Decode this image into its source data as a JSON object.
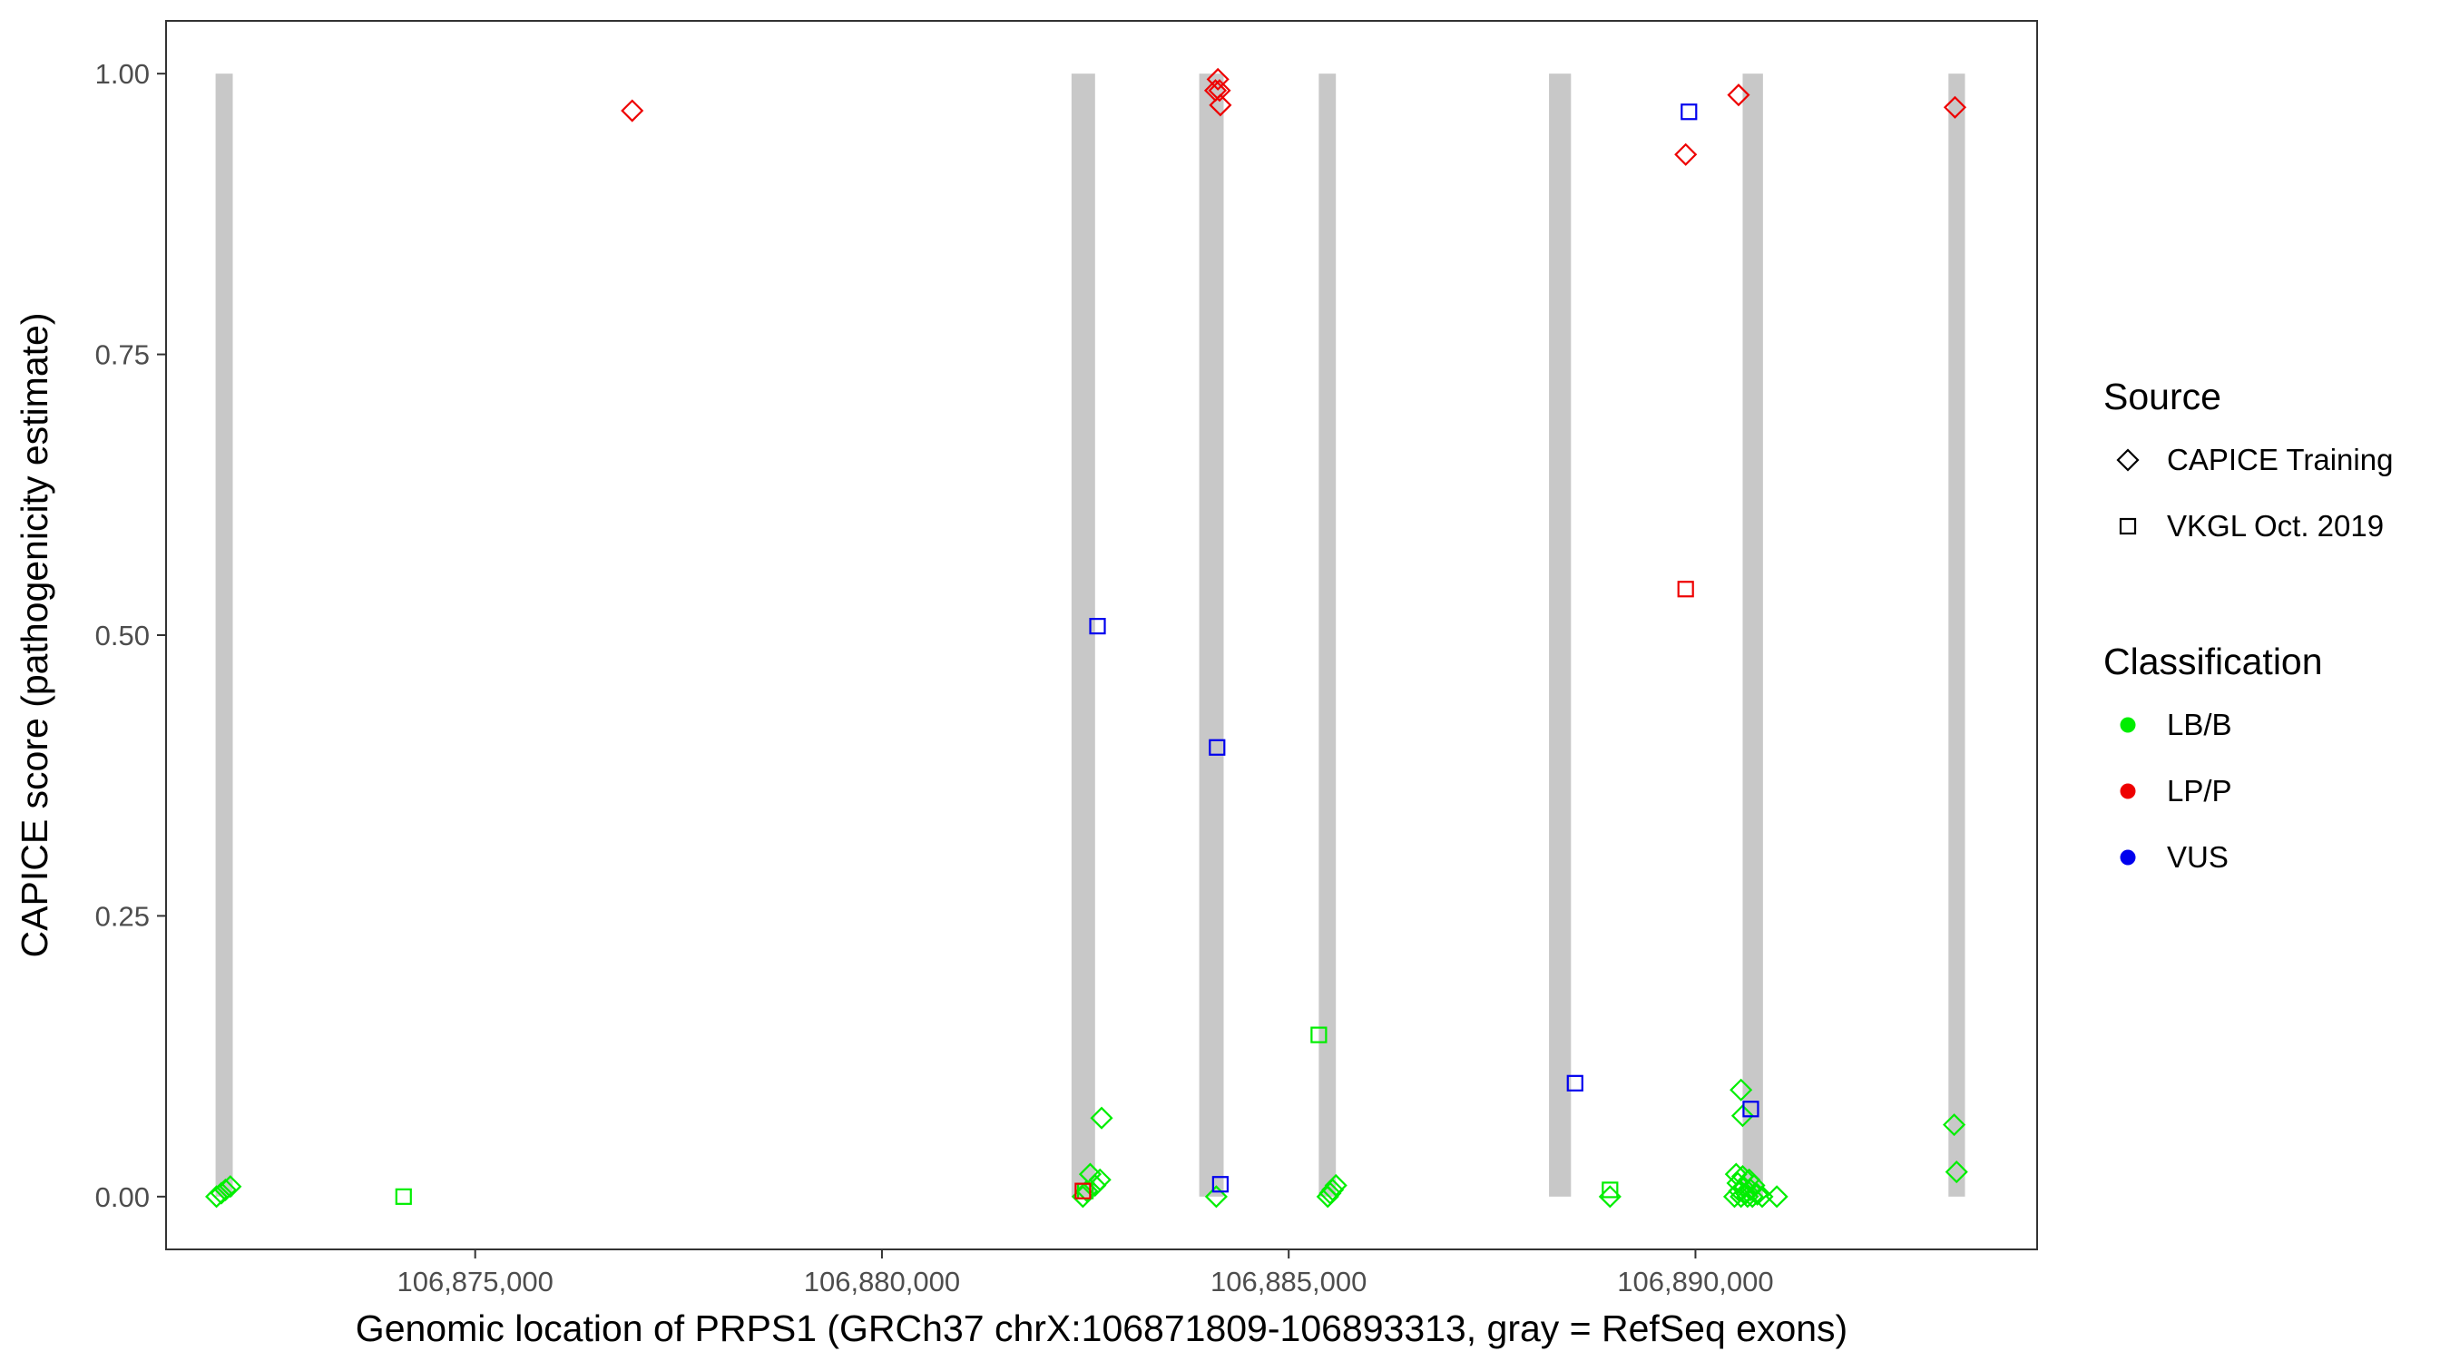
{
  "chart_data": {
    "type": "scatter",
    "xlabel": "Genomic location of PRPS1 (GRCh37 chrX:106871809-106893313, gray = RefSeq exons)",
    "ylabel": "CAPICE score (pathogenicity estimate)",
    "xlim": [
      106871200,
      106894200
    ],
    "ylim": [
      -0.047,
      1.047
    ],
    "x_ticks": [
      106875000,
      106880000,
      106885000,
      106890000
    ],
    "x_tick_labels": [
      "106,875,000",
      "106,880,000",
      "106,885,000",
      "106,890,000"
    ],
    "y_ticks": [
      0,
      0.25,
      0.5,
      0.75,
      1.0
    ],
    "y_tick_labels": [
      "0.00",
      "0.25",
      "0.50",
      "0.75",
      "1.00"
    ],
    "grid": false,
    "exons": [
      {
        "start": 106871809,
        "end": 106872020,
        "ymin": 0,
        "ymax": 1.0
      },
      {
        "start": 106882330,
        "end": 106882620,
        "ymin": 0,
        "ymax": 1.0
      },
      {
        "start": 106883900,
        "end": 106884200,
        "ymin": 0,
        "ymax": 1.0
      },
      {
        "start": 106885370,
        "end": 106885580,
        "ymin": 0,
        "ymax": 1.0
      },
      {
        "start": 106888200,
        "end": 106888470,
        "ymin": 0,
        "ymax": 1.0
      },
      {
        "start": 106890580,
        "end": 106890830,
        "ymin": 0,
        "ymax": 1.0
      },
      {
        "start": 106893110,
        "end": 106893313,
        "ymin": 0,
        "ymax": 1.0
      }
    ],
    "legend": {
      "placement": "right",
      "source_title": "Source",
      "source_items": [
        {
          "label": "CAPICE Training",
          "shape": "diamond"
        },
        {
          "label": "VKGL Oct. 2019",
          "shape": "square"
        }
      ],
      "class_title": "Classification",
      "class_items": [
        {
          "label": "LB/B",
          "color": "#00ee00"
        },
        {
          "label": "LP/P",
          "color": "#ee0000"
        },
        {
          "label": "VUS",
          "color": "#0000ee"
        }
      ]
    },
    "colors": {
      "LB/B": "#00ee00",
      "LP/P": "#ee0000",
      "VUS": "#0000ee",
      "exon": "#c8c8c8"
    },
    "points": [
      {
        "x": 106871820,
        "y": 0.0,
        "shape": "diamond",
        "cls": "LB/B"
      },
      {
        "x": 106871880,
        "y": 0.003,
        "shape": "diamond",
        "cls": "LB/B"
      },
      {
        "x": 106871930,
        "y": 0.006,
        "shape": "diamond",
        "cls": "LB/B"
      },
      {
        "x": 106871990,
        "y": 0.009,
        "shape": "diamond",
        "cls": "LB/B"
      },
      {
        "x": 106874120,
        "y": 0.0,
        "shape": "square",
        "cls": "LB/B"
      },
      {
        "x": 106876930,
        "y": 0.967,
        "shape": "diamond",
        "cls": "LP/P"
      },
      {
        "x": 106882470,
        "y": 0.0,
        "shape": "diamond",
        "cls": "LB/B"
      },
      {
        "x": 106882520,
        "y": 0.005,
        "shape": "diamond",
        "cls": "LB/B"
      },
      {
        "x": 106882560,
        "y": 0.02,
        "shape": "diamond",
        "cls": "LB/B"
      },
      {
        "x": 106882620,
        "y": 0.01,
        "shape": "diamond",
        "cls": "LB/B"
      },
      {
        "x": 106882680,
        "y": 0.015,
        "shape": "diamond",
        "cls": "LB/B"
      },
      {
        "x": 106882700,
        "y": 0.07,
        "shape": "diamond",
        "cls": "LB/B"
      },
      {
        "x": 106882500,
        "y": 0.005,
        "shape": "square",
        "cls": "LB/B"
      },
      {
        "x": 106882470,
        "y": 0.005,
        "shape": "square",
        "cls": "LP/P"
      },
      {
        "x": 106882650,
        "y": 0.508,
        "shape": "square",
        "cls": "VUS"
      },
      {
        "x": 106884100,
        "y": 0.985,
        "shape": "diamond",
        "cls": "LP/P"
      },
      {
        "x": 106884130,
        "y": 0.995,
        "shape": "diamond",
        "cls": "LP/P"
      },
      {
        "x": 106884150,
        "y": 0.985,
        "shape": "diamond",
        "cls": "LP/P"
      },
      {
        "x": 106884160,
        "y": 0.972,
        "shape": "diamond",
        "cls": "LP/P"
      },
      {
        "x": 106884110,
        "y": 0.0,
        "shape": "diamond",
        "cls": "LB/B"
      },
      {
        "x": 106884120,
        "y": 0.4,
        "shape": "square",
        "cls": "VUS"
      },
      {
        "x": 106884160,
        "y": 0.011,
        "shape": "square",
        "cls": "VUS"
      },
      {
        "x": 106885370,
        "y": 0.144,
        "shape": "square",
        "cls": "LB/B"
      },
      {
        "x": 106885480,
        "y": 0.0,
        "shape": "diamond",
        "cls": "LB/B"
      },
      {
        "x": 106885510,
        "y": 0.003,
        "shape": "diamond",
        "cls": "LB/B"
      },
      {
        "x": 106885540,
        "y": 0.006,
        "shape": "diamond",
        "cls": "LB/B"
      },
      {
        "x": 106885580,
        "y": 0.01,
        "shape": "diamond",
        "cls": "LB/B"
      },
      {
        "x": 106888520,
        "y": 0.101,
        "shape": "square",
        "cls": "VUS"
      },
      {
        "x": 106888950,
        "y": 0.0,
        "shape": "diamond",
        "cls": "LB/B"
      },
      {
        "x": 106888950,
        "y": 0.006,
        "shape": "square",
        "cls": "LB/B"
      },
      {
        "x": 106889880,
        "y": 0.928,
        "shape": "diamond",
        "cls": "LP/P"
      },
      {
        "x": 106889880,
        "y": 0.541,
        "shape": "square",
        "cls": "LP/P"
      },
      {
        "x": 106889920,
        "y": 0.966,
        "shape": "square",
        "cls": "VUS"
      },
      {
        "x": 106890530,
        "y": 0.981,
        "shape": "diamond",
        "cls": "LP/P"
      },
      {
        "x": 106890560,
        "y": 0.095,
        "shape": "diamond",
        "cls": "LB/B"
      },
      {
        "x": 106890580,
        "y": 0.072,
        "shape": "diamond",
        "cls": "LB/B"
      },
      {
        "x": 106890680,
        "y": 0.078,
        "shape": "square",
        "cls": "VUS"
      },
      {
        "x": 106890480,
        "y": 0.0,
        "shape": "diamond",
        "cls": "LB/B"
      },
      {
        "x": 106890500,
        "y": 0.02,
        "shape": "diamond",
        "cls": "LB/B"
      },
      {
        "x": 106890520,
        "y": 0.012,
        "shape": "diamond",
        "cls": "LB/B"
      },
      {
        "x": 106890540,
        "y": 0.005,
        "shape": "diamond",
        "cls": "LB/B"
      },
      {
        "x": 106890560,
        "y": 0.0,
        "shape": "diamond",
        "cls": "LB/B"
      },
      {
        "x": 106890580,
        "y": 0.018,
        "shape": "diamond",
        "cls": "LB/B"
      },
      {
        "x": 106890600,
        "y": 0.008,
        "shape": "diamond",
        "cls": "LB/B"
      },
      {
        "x": 106890620,
        "y": 0.003,
        "shape": "diamond",
        "cls": "LB/B"
      },
      {
        "x": 106890640,
        "y": 0.0,
        "shape": "diamond",
        "cls": "LB/B"
      },
      {
        "x": 106890660,
        "y": 0.015,
        "shape": "diamond",
        "cls": "LB/B"
      },
      {
        "x": 106890680,
        "y": 0.006,
        "shape": "diamond",
        "cls": "LB/B"
      },
      {
        "x": 106890700,
        "y": 0.0,
        "shape": "diamond",
        "cls": "LB/B"
      },
      {
        "x": 106890720,
        "y": 0.01,
        "shape": "diamond",
        "cls": "LB/B"
      },
      {
        "x": 106890760,
        "y": 0.002,
        "shape": "diamond",
        "cls": "LB/B"
      },
      {
        "x": 106890820,
        "y": 0.0,
        "shape": "diamond",
        "cls": "LB/B"
      },
      {
        "x": 106891000,
        "y": 0.0,
        "shape": "diamond",
        "cls": "LB/B"
      },
      {
        "x": 106893190,
        "y": 0.97,
        "shape": "diamond",
        "cls": "LP/P"
      },
      {
        "x": 106893180,
        "y": 0.064,
        "shape": "diamond",
        "cls": "LB/B"
      },
      {
        "x": 106893210,
        "y": 0.022,
        "shape": "diamond",
        "cls": "LB/B"
      }
    ]
  }
}
